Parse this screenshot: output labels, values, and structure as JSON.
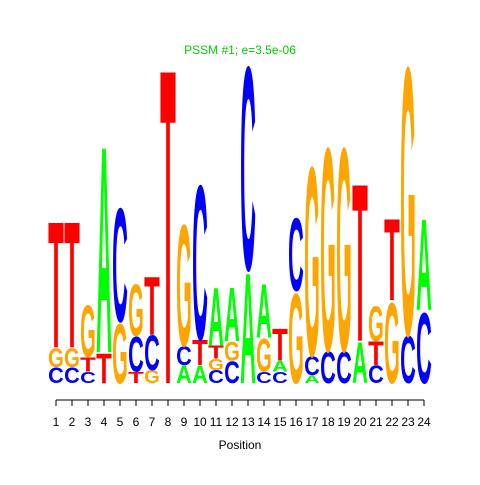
{
  "chart_data": {
    "type": "logo",
    "title": "PSSM #1; e=3.5e-06",
    "title_color": "#00cc00",
    "xlabel": "Position",
    "xlim": [
      0.5,
      24.5
    ],
    "xticks": [
      1,
      2,
      3,
      4,
      5,
      6,
      7,
      8,
      9,
      10,
      11,
      12,
      13,
      14,
      15,
      16,
      17,
      18,
      19,
      20,
      21,
      22,
      23,
      24
    ],
    "ylim": [
      0,
      2
    ],
    "colors": {
      "A": "#00ff00",
      "C": "#0000ff",
      "G": "#ffa500",
      "T": "#ff0000"
    },
    "stacks": [
      [
        {
          "base": "C",
          "height": 0.1
        },
        {
          "base": "G",
          "height": 0.12
        },
        {
          "base": "T",
          "height": 0.8
        }
      ],
      [
        {
          "base": "C",
          "height": 0.1
        },
        {
          "base": "G",
          "height": 0.12
        },
        {
          "base": "T",
          "height": 0.8
        }
      ],
      [
        {
          "base": "C",
          "height": 0.07
        },
        {
          "base": "T",
          "height": 0.09
        },
        {
          "base": "G",
          "height": 0.33
        }
      ],
      [
        {
          "base": "T",
          "height": 0.19
        },
        {
          "base": "A",
          "height": 1.31
        }
      ],
      [
        {
          "base": "G",
          "height": 0.38
        },
        {
          "base": "C",
          "height": 0.72
        }
      ],
      [
        {
          "base": "T",
          "height": 0.07
        },
        {
          "base": "C",
          "height": 0.22
        },
        {
          "base": "G",
          "height": 0.33
        }
      ],
      [
        {
          "base": "G",
          "height": 0.08
        },
        {
          "base": "C",
          "height": 0.22
        },
        {
          "base": "T",
          "height": 0.37
        }
      ],
      [
        {
          "base": "T",
          "height": 2.0
        }
      ],
      [
        {
          "base": "A",
          "height": 0.11
        },
        {
          "base": "C",
          "height": 0.12
        },
        {
          "base": "G",
          "height": 0.77
        }
      ],
      [
        {
          "base": "A",
          "height": 0.11
        },
        {
          "base": "T",
          "height": 0.16
        },
        {
          "base": "C",
          "height": 0.98
        }
      ],
      [
        {
          "base": "C",
          "height": 0.08
        },
        {
          "base": "G",
          "height": 0.07
        },
        {
          "base": "T",
          "height": 0.08
        },
        {
          "base": "A",
          "height": 0.37
        }
      ],
      [
        {
          "base": "C",
          "height": 0.14
        },
        {
          "base": "G",
          "height": 0.12
        },
        {
          "base": "A",
          "height": 0.34
        }
      ],
      [
        {
          "base": "A",
          "height": 0.7
        },
        {
          "base": "C",
          "height": 1.29
        }
      ],
      [
        {
          "base": "C",
          "height": 0.07
        },
        {
          "base": "G",
          "height": 0.21
        },
        {
          "base": "A",
          "height": 0.34
        }
      ],
      [
        {
          "base": "C",
          "height": 0.07
        },
        {
          "base": "A",
          "height": 0.07
        },
        {
          "base": "T",
          "height": 0.2
        }
      ],
      [
        {
          "base": "G",
          "height": 0.57
        },
        {
          "base": "C",
          "height": 0.46
        }
      ],
      [
        {
          "base": "A",
          "height": 0.05
        },
        {
          "base": "C",
          "height": 0.12
        },
        {
          "base": "G",
          "height": 1.2
        }
      ],
      [
        {
          "base": "C",
          "height": 0.2
        },
        {
          "base": "G",
          "height": 1.29
        }
      ],
      [
        {
          "base": "C",
          "height": 0.2
        },
        {
          "base": "G",
          "height": 1.29
        }
      ],
      [
        {
          "base": "A",
          "height": 0.26
        },
        {
          "base": "T",
          "height": 1.0
        }
      ],
      [
        {
          "base": "C",
          "height": 0.11
        },
        {
          "base": "T",
          "height": 0.15
        },
        {
          "base": "G",
          "height": 0.22
        }
      ],
      [
        {
          "base": "G",
          "height": 0.51
        },
        {
          "base": "T",
          "height": 0.52
        }
      ],
      [
        {
          "base": "C",
          "height": 0.3
        },
        {
          "base": "G",
          "height": 1.7
        }
      ],
      [
        {
          "base": "C",
          "height": 0.45
        },
        {
          "base": "A",
          "height": 0.58
        }
      ]
    ]
  }
}
